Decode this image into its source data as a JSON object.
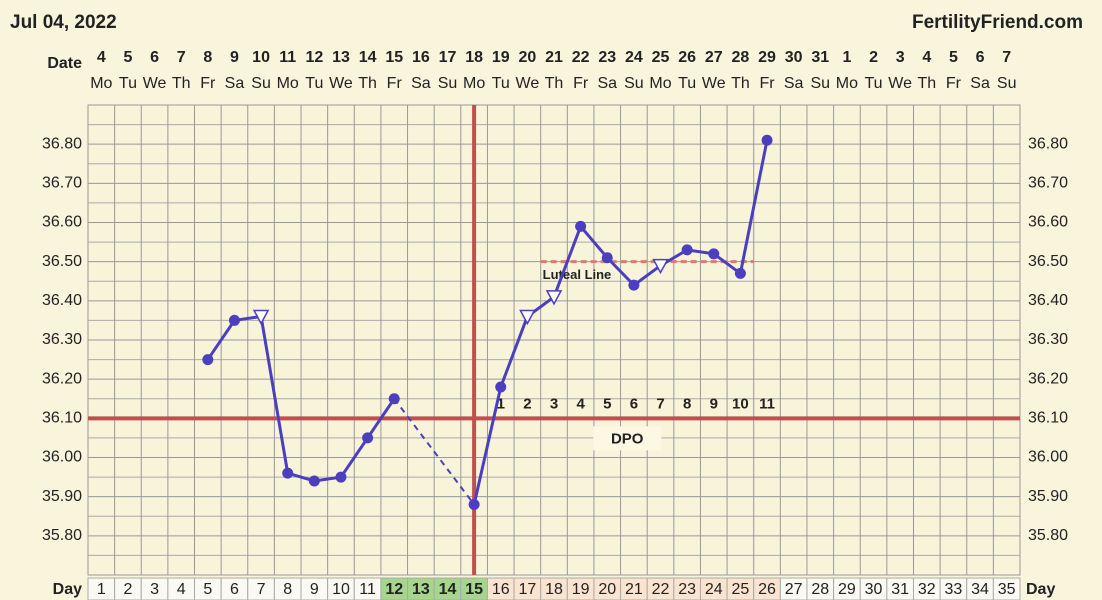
{
  "header": {
    "date": "Jul 04, 2022",
    "site": "FertilityFriend.com"
  },
  "chart_data": {
    "type": "line",
    "date_label": "Date",
    "day_label": "Day",
    "dates": [
      4,
      5,
      6,
      7,
      8,
      9,
      10,
      11,
      12,
      13,
      14,
      15,
      16,
      17,
      18,
      19,
      20,
      21,
      22,
      23,
      24,
      25,
      26,
      27,
      28,
      29,
      30,
      31,
      1,
      2,
      3,
      4,
      5,
      6,
      7
    ],
    "weekdays": [
      "Mo",
      "Tu",
      "We",
      "Th",
      "Fr",
      "Sa",
      "Su",
      "Mo",
      "Tu",
      "We",
      "Th",
      "Fr",
      "Sa",
      "Su",
      "Mo",
      "Tu",
      "We",
      "Th",
      "Fr",
      "Sa",
      "Su",
      "Mo",
      "Tu",
      "We",
      "Th",
      "Fr",
      "Sa",
      "Su",
      "Mo",
      "Tu",
      "We",
      "Th",
      "Fr",
      "Sa",
      "Su"
    ],
    "days": [
      1,
      2,
      3,
      4,
      5,
      6,
      7,
      8,
      9,
      10,
      11,
      12,
      13,
      14,
      15,
      16,
      17,
      18,
      19,
      20,
      21,
      22,
      23,
      24,
      25,
      26,
      27,
      28,
      29,
      30,
      31,
      32,
      33,
      34,
      35
    ],
    "values": [
      null,
      null,
      null,
      null,
      36.25,
      36.35,
      36.36,
      35.96,
      35.94,
      35.95,
      36.05,
      36.15,
      null,
      null,
      35.88,
      36.18,
      36.36,
      36.41,
      36.59,
      36.51,
      36.44,
      36.49,
      36.53,
      36.52,
      36.47,
      36.81,
      null,
      null,
      null,
      null,
      null,
      null,
      null,
      null,
      null
    ],
    "markers": [
      null,
      null,
      null,
      null,
      "circle",
      "circle",
      "triangle",
      "circle",
      "circle",
      "circle",
      "circle",
      "circle",
      null,
      null,
      "circle",
      "circle",
      "triangle",
      "triangle",
      "circle",
      "circle",
      "circle",
      "triangle",
      "circle",
      "circle",
      "circle",
      "circle",
      null,
      null,
      null,
      null,
      null,
      null,
      null,
      null,
      null
    ],
    "color": "#4b3fc0",
    "ylim": [
      35.7,
      36.9
    ],
    "yticks": [
      {
        "value": 35.8,
        "label": "35.80"
      },
      {
        "value": 35.9,
        "label": "35.90"
      },
      {
        "value": 36.0,
        "label": "36.00"
      },
      {
        "value": 36.1,
        "label": "36.10"
      },
      {
        "value": 36.2,
        "label": "36.20"
      },
      {
        "value": 36.3,
        "label": "36.30"
      },
      {
        "value": 36.4,
        "label": "36.40"
      },
      {
        "value": 36.5,
        "label": "36.50"
      },
      {
        "value": 36.6,
        "label": "36.60"
      },
      {
        "value": 36.7,
        "label": "36.70"
      },
      {
        "value": 36.8,
        "label": "36.80"
      }
    ],
    "grid_minor": [
      35.75,
      35.85,
      35.95,
      36.05,
      36.15,
      36.25,
      36.35,
      36.45,
      36.55,
      36.65,
      36.75,
      36.85
    ],
    "coverline": 36.1,
    "ovulation_day": 15,
    "fertile_days": [
      12,
      13,
      14,
      15
    ],
    "dpo_labels": [
      1,
      2,
      3,
      4,
      5,
      6,
      7,
      8,
      9,
      10,
      11
    ],
    "dpo_title": "DPO",
    "luteal_line": {
      "label": "Luteal Line",
      "value": 36.5,
      "from_day": 18,
      "to_day": 26
    }
  }
}
